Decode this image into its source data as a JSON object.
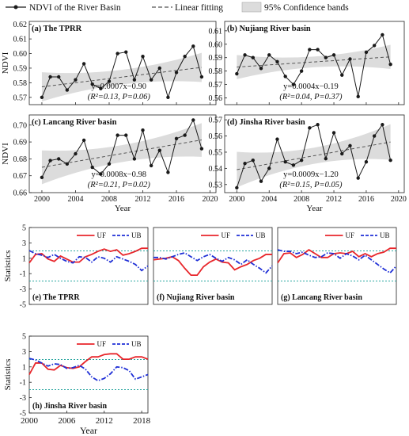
{
  "legend": {
    "ndvi": "NDVI of the River Basin",
    "fit": "Linear fitting",
    "band": "95% Confidence bands"
  },
  "colors": {
    "ndvi_line": "#1a1a1a",
    "fit_line": "#555555",
    "band_fill": "#dcdcdc",
    "uf": "#e8262b",
    "ub": "#1f2fd6",
    "threshold": "#2aa6a0"
  },
  "chart_data": [
    {
      "type": "line",
      "label": "(a) The TPRR",
      "x": [
        2000,
        2001,
        2002,
        2003,
        2004,
        2005,
        2006,
        2007,
        2008,
        2009,
        2010,
        2011,
        2012,
        2013,
        2014,
        2015,
        2016,
        2017,
        2018,
        2019
      ],
      "values": [
        0.57,
        0.584,
        0.584,
        0.575,
        0.582,
        0.593,
        0.579,
        0.576,
        0.581,
        0.6,
        0.601,
        0.582,
        0.598,
        0.582,
        0.59,
        0.57,
        0.587,
        0.598,
        0.605,
        0.584
      ],
      "fit": [
        0.5772,
        0.5905
      ],
      "band_width": [
        0.01,
        0.005,
        0.01
      ],
      "equation": "y=0.0007x−0.90",
      "stats": "(R²=0.13, P=0.06)",
      "ylabel": "NDVI",
      "xlabel": "",
      "yticks": [
        "0.62",
        "0.61",
        "0.60",
        "0.59",
        "0.58",
        "0.57"
      ],
      "ylim": [
        0.565,
        0.622
      ]
    },
    {
      "type": "line",
      "label": "(b) Nujiang River basin",
      "x": [
        2000,
        2001,
        2002,
        2003,
        2004,
        2005,
        2006,
        2007,
        2008,
        2009,
        2010,
        2011,
        2012,
        2013,
        2014,
        2015,
        2016,
        2017,
        2018,
        2019
      ],
      "values": [
        0.578,
        0.592,
        0.59,
        0.582,
        0.592,
        0.587,
        0.576,
        0.57,
        0.58,
        0.596,
        0.596,
        0.59,
        0.592,
        0.577,
        0.589,
        0.561,
        0.594,
        0.599,
        0.607,
        0.585
      ],
      "fit": [
        0.583,
        0.5906
      ],
      "band_width": [
        0.009,
        0.004,
        0.009
      ],
      "equation": "y=0.0004x−0.19",
      "stats": "(R²=0.04, P=0.37)",
      "ylabel": "",
      "xlabel": "",
      "yticks": [
        "0.61",
        "0.60",
        "0.59",
        "0.58",
        "0.57",
        "0.56"
      ],
      "ylim": [
        0.555,
        0.617
      ]
    },
    {
      "type": "line",
      "label": "(c) Lancang River basin",
      "x": [
        2000,
        2001,
        2002,
        2003,
        2004,
        2005,
        2006,
        2007,
        2008,
        2009,
        2010,
        2011,
        2012,
        2013,
        2014,
        2015,
        2016,
        2017,
        2018,
        2019
      ],
      "values": [
        0.669,
        0.679,
        0.68,
        0.677,
        0.683,
        0.691,
        0.675,
        0.671,
        0.677,
        0.694,
        0.694,
        0.68,
        0.697,
        0.676,
        0.685,
        0.672,
        0.692,
        0.694,
        0.703,
        0.686
      ],
      "fit": [
        0.675,
        0.6912
      ],
      "band_width": [
        0.01,
        0.005,
        0.01
      ],
      "equation": "y=0.0008x−0.98",
      "stats": "(R²=0.21, P=0.02)",
      "ylabel": "NDVI",
      "xlabel": "Year",
      "yticks": [
        "0.70",
        "0.69",
        "0.68",
        "0.67",
        "0.66"
      ],
      "ylim": [
        0.66,
        0.706
      ]
    },
    {
      "type": "line",
      "label": "(d) Jinsha River basin",
      "x": [
        2000,
        2001,
        2002,
        2003,
        2004,
        2005,
        2006,
        2007,
        2008,
        2009,
        2010,
        2011,
        2012,
        2013,
        2014,
        2015,
        2016,
        2017,
        2018,
        2019
      ],
      "values": [
        0.528,
        0.543,
        0.545,
        0.532,
        0.54,
        0.558,
        0.544,
        0.542,
        0.545,
        0.565,
        0.567,
        0.546,
        0.562,
        0.549,
        0.554,
        0.534,
        0.544,
        0.56,
        0.567,
        0.545
      ],
      "fit": [
        0.5392,
        0.5563
      ],
      "band_width": [
        0.011,
        0.005,
        0.011
      ],
      "equation": "y=0.0009x−1.20",
      "stats": "(R²=0.15, P=0.05)",
      "ylabel": "",
      "xlabel": "Year",
      "yticks": [
        "0.57",
        "0.56",
        "0.55",
        "0.54",
        "0.53"
      ],
      "ylim": [
        0.525,
        0.573
      ]
    },
    {
      "type": "line",
      "label": "(e) The TPRR",
      "x": [
        2000,
        2001,
        2002,
        2003,
        2004,
        2005,
        2006,
        2007,
        2008,
        2009,
        2010,
        2011,
        2012,
        2013,
        2014,
        2015,
        2016,
        2017,
        2018,
        2019
      ],
      "uf": [
        0.4,
        1.5,
        1.6,
        0.9,
        0.6,
        1.3,
        0.9,
        0.5,
        0.5,
        1.2,
        1.5,
        1.9,
        2.2,
        1.9,
        2.1,
        1.4,
        1.6,
        1.9,
        2.3,
        2.3
      ],
      "ub": [
        2.0,
        1.6,
        1.4,
        1.1,
        1.5,
        1.0,
        0.6,
        0.4,
        1.2,
        1.1,
        0.5,
        1.2,
        1.0,
        0.5,
        1.2,
        0.9,
        0.6,
        0.2,
        -0.6,
        0.0
      ],
      "series_names": [
        "UF",
        "UB"
      ],
      "thresholds": [
        1.96,
        -1.96
      ],
      "ylabel": "Statistics",
      "xlabel": "",
      "ylim": [
        -5,
        5
      ]
    },
    {
      "type": "line",
      "label": "(f) Nujiang River basin",
      "x": [
        2000,
        2001,
        2002,
        2003,
        2004,
        2005,
        2006,
        2007,
        2008,
        2009,
        2010,
        2011,
        2012,
        2013,
        2014,
        2015,
        2016,
        2017,
        2018,
        2019
      ],
      "uf": [
        0.8,
        0.9,
        1.0,
        1.2,
        0.7,
        -0.3,
        -1.2,
        -1.2,
        -0.1,
        0.5,
        0.9,
        0.5,
        0.4,
        -0.5,
        -0.1,
        0.2,
        0.7,
        1.0,
        1.5,
        1.5
      ],
      "ub": [
        1.1,
        1.1,
        0.9,
        1.2,
        1.5,
        1.7,
        1.2,
        0.7,
        1.2,
        1.5,
        1.0,
        0.6,
        1.1,
        0.8,
        0.2,
        0.8,
        0.2,
        -0.3,
        -0.9,
        0.0
      ],
      "series_names": [
        "UF",
        "UB"
      ],
      "thresholds": [
        1.96,
        -1.96
      ],
      "ylabel": "",
      "xlabel": "",
      "ylim": [
        -5,
        5
      ]
    },
    {
      "type": "line",
      "label": "(g) Lancang River basin",
      "x": [
        2000,
        2001,
        2002,
        2003,
        2004,
        2005,
        2006,
        2007,
        2008,
        2009,
        2010,
        2011,
        2012,
        2013,
        2014,
        2015,
        2016,
        2017,
        2018,
        2019
      ],
      "uf": [
        0.4,
        1.6,
        1.7,
        1.1,
        1.5,
        2.1,
        1.6,
        1.1,
        1.1,
        1.6,
        1.7,
        1.6,
        1.9,
        1.2,
        1.6,
        1.2,
        1.6,
        1.8,
        2.3,
        2.3
      ],
      "ub": [
        2.1,
        1.9,
        1.9,
        1.6,
        1.8,
        1.4,
        1.1,
        1.2,
        1.7,
        1.6,
        1.0,
        1.6,
        1.3,
        0.8,
        1.4,
        0.8,
        0.2,
        -0.4,
        -0.9,
        0.0
      ],
      "series_names": [
        "UF",
        "UB"
      ],
      "thresholds": [
        1.96,
        -1.96
      ],
      "ylabel": "",
      "xlabel": "",
      "ylim": [
        -5,
        5
      ]
    },
    {
      "type": "line",
      "label": "(h) Jinsha River basin",
      "x": [
        2000,
        2001,
        2002,
        2003,
        2004,
        2005,
        2006,
        2007,
        2008,
        2009,
        2010,
        2011,
        2012,
        2013,
        2014,
        2015,
        2016,
        2017,
        2018,
        2019
      ],
      "uf": [
        0.0,
        1.5,
        1.5,
        0.7,
        0.6,
        1.2,
        0.9,
        0.8,
        1.0,
        1.7,
        2.3,
        2.3,
        2.6,
        2.7,
        2.7,
        2.0,
        2.0,
        2.3,
        2.3,
        2.0
      ],
      "ub": [
        2.1,
        1.9,
        1.5,
        1.1,
        1.4,
        1.3,
        0.8,
        0.9,
        1.2,
        0.7,
        -0.3,
        -0.8,
        -0.5,
        0.1,
        1.0,
        0.9,
        0.5,
        -0.6,
        -0.3,
        0.0
      ],
      "series_names": [
        "UF",
        "UB"
      ],
      "thresholds": [
        1.96,
        -1.96
      ],
      "ylabel": "Statistics",
      "xlabel": "Year",
      "yticks": [
        "5",
        "3",
        "1",
        "-1",
        "-3",
        "-5"
      ],
      "xticks": [
        "2000",
        "2006",
        "2012",
        "2018"
      ],
      "ylim": [
        -5,
        5
      ]
    }
  ],
  "ndvi_xticks": [
    "2000",
    "2004",
    "2008",
    "2012",
    "2016",
    "2020"
  ],
  "stats_yticks": [
    "5",
    "3",
    "1",
    "-1",
    "-3",
    "-5"
  ],
  "stats_xticks": [
    "2000",
    "2006",
    "2012",
    "2018"
  ]
}
